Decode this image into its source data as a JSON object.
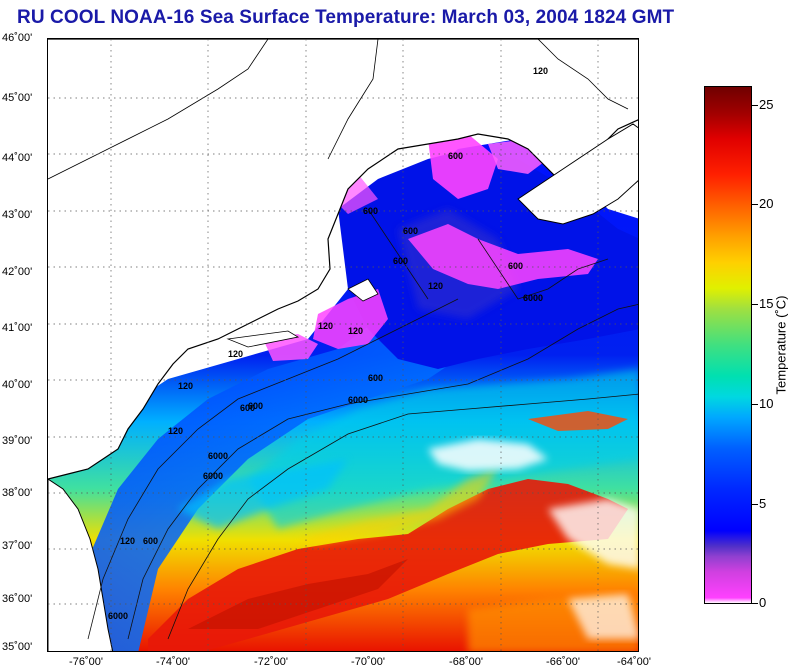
{
  "title": "RU COOL  NOAA-16  Sea Surface Temperature:  March 03, 2004 1824 GMT",
  "map": {
    "latitudes": [
      "46˚00'",
      "45˚00'",
      "44˚00'",
      "43˚00'",
      "42˚00'",
      "41˚00'",
      "40˚00'",
      "39˚00'",
      "38˚00'",
      "37˚00'",
      "36˚00'",
      "35˚00'"
    ],
    "longitudes": [
      "-76˚00'",
      "-74˚00'",
      "-72˚00'",
      "-70˚00'",
      "-68˚00'",
      "-66˚00'",
      "-64˚00'"
    ],
    "contour_labels": [
      "120",
      "600",
      "6000",
      "120",
      "600",
      "600",
      "600",
      "120",
      "600",
      "120",
      "600",
      "120",
      "6000",
      "600",
      "6000",
      "120",
      "600",
      "6000",
      "120",
      "6000",
      "600",
      "120"
    ]
  },
  "colorbar": {
    "title": "Temperature (˚C)",
    "ticks": [
      "25",
      "20",
      "15",
      "10",
      "5",
      "0"
    ],
    "range": [
      0,
      26
    ]
  },
  "colors": {
    "title": "#1a1aa8",
    "land": "#ffffff",
    "cold": "#ff40ff",
    "warm": "#d01010"
  }
}
